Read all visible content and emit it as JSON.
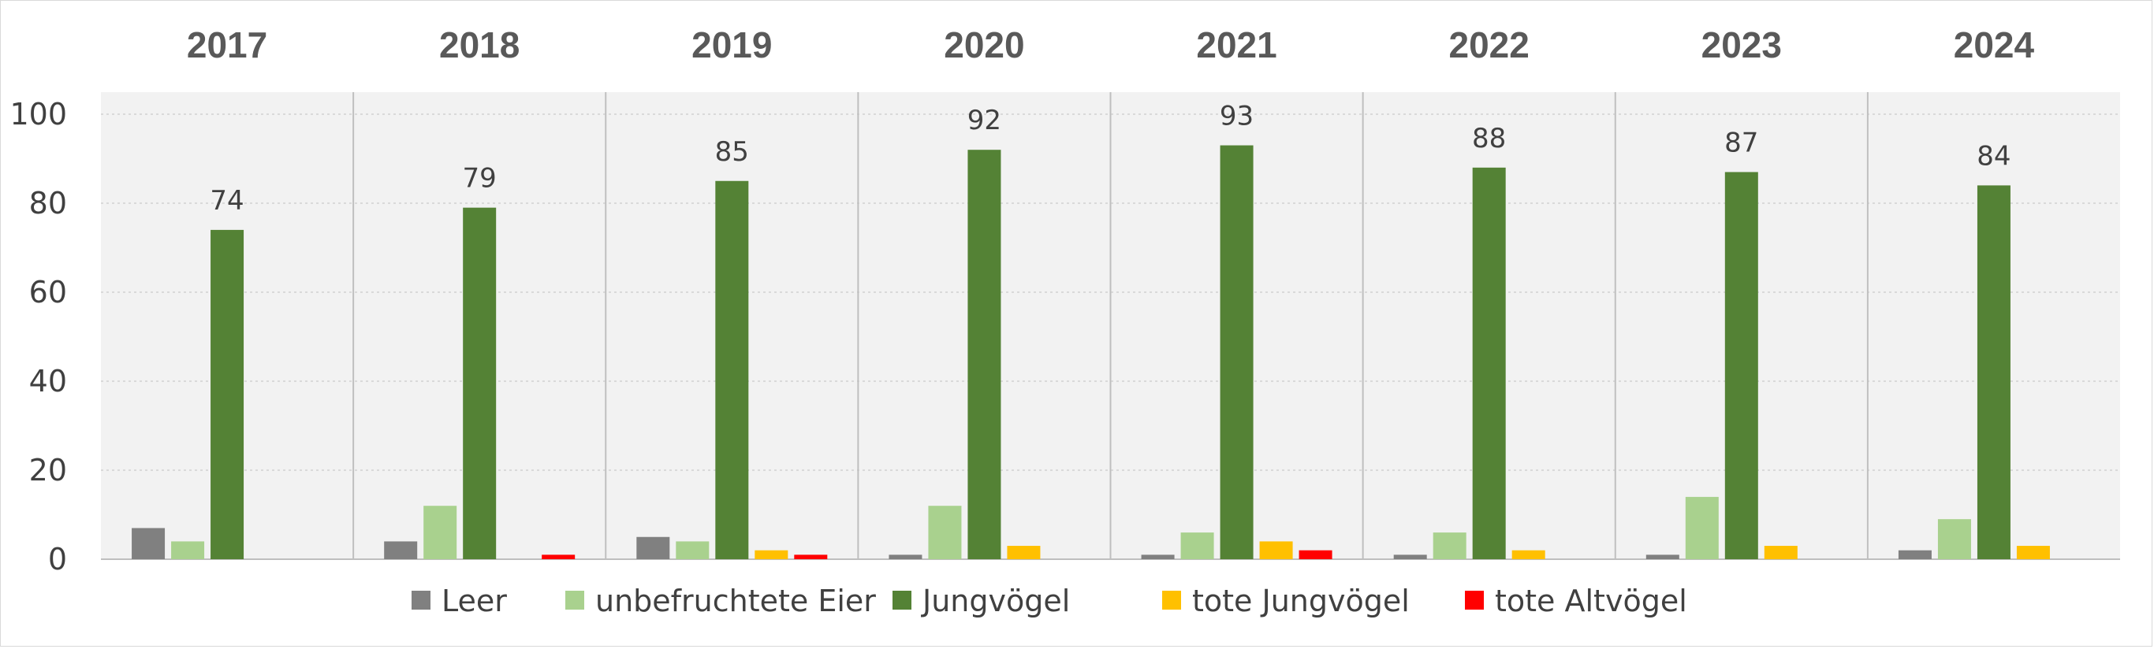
{
  "chart_data": {
    "type": "bar",
    "categories": [
      "2017",
      "2018",
      "2019",
      "2020",
      "2021",
      "2022",
      "2023",
      "2024"
    ],
    "ylim": [
      0,
      100
    ],
    "yticks": [
      0,
      20,
      40,
      60,
      80,
      100
    ],
    "grid": true,
    "legend_position": "bottom",
    "series": [
      {
        "name": "Leer",
        "color": "#808080",
        "values": [
          7,
          4,
          5,
          1,
          1,
          1,
          1,
          2
        ]
      },
      {
        "name": "unbefruchtete Eier",
        "color": "#a9d18e",
        "values": [
          4,
          12,
          4,
          12,
          6,
          6,
          14,
          9
        ]
      },
      {
        "name": "Jungvögel",
        "color": "#548235",
        "values": [
          74,
          79,
          85,
          92,
          93,
          88,
          87,
          84
        ],
        "show_data_labels": true
      },
      {
        "name": "tote Jungvögel",
        "color": "#ffc000",
        "values": [
          0,
          0,
          2,
          3,
          4,
          2,
          3,
          3
        ]
      },
      {
        "name": "tote Altvögel",
        "color": "#ff0000",
        "values": [
          0,
          1,
          1,
          0,
          2,
          0,
          0,
          0
        ]
      }
    ],
    "plot_background": "#f2f2f2",
    "gridline_color": "#d9d9d9",
    "separator_color": "#bfbfbf"
  }
}
